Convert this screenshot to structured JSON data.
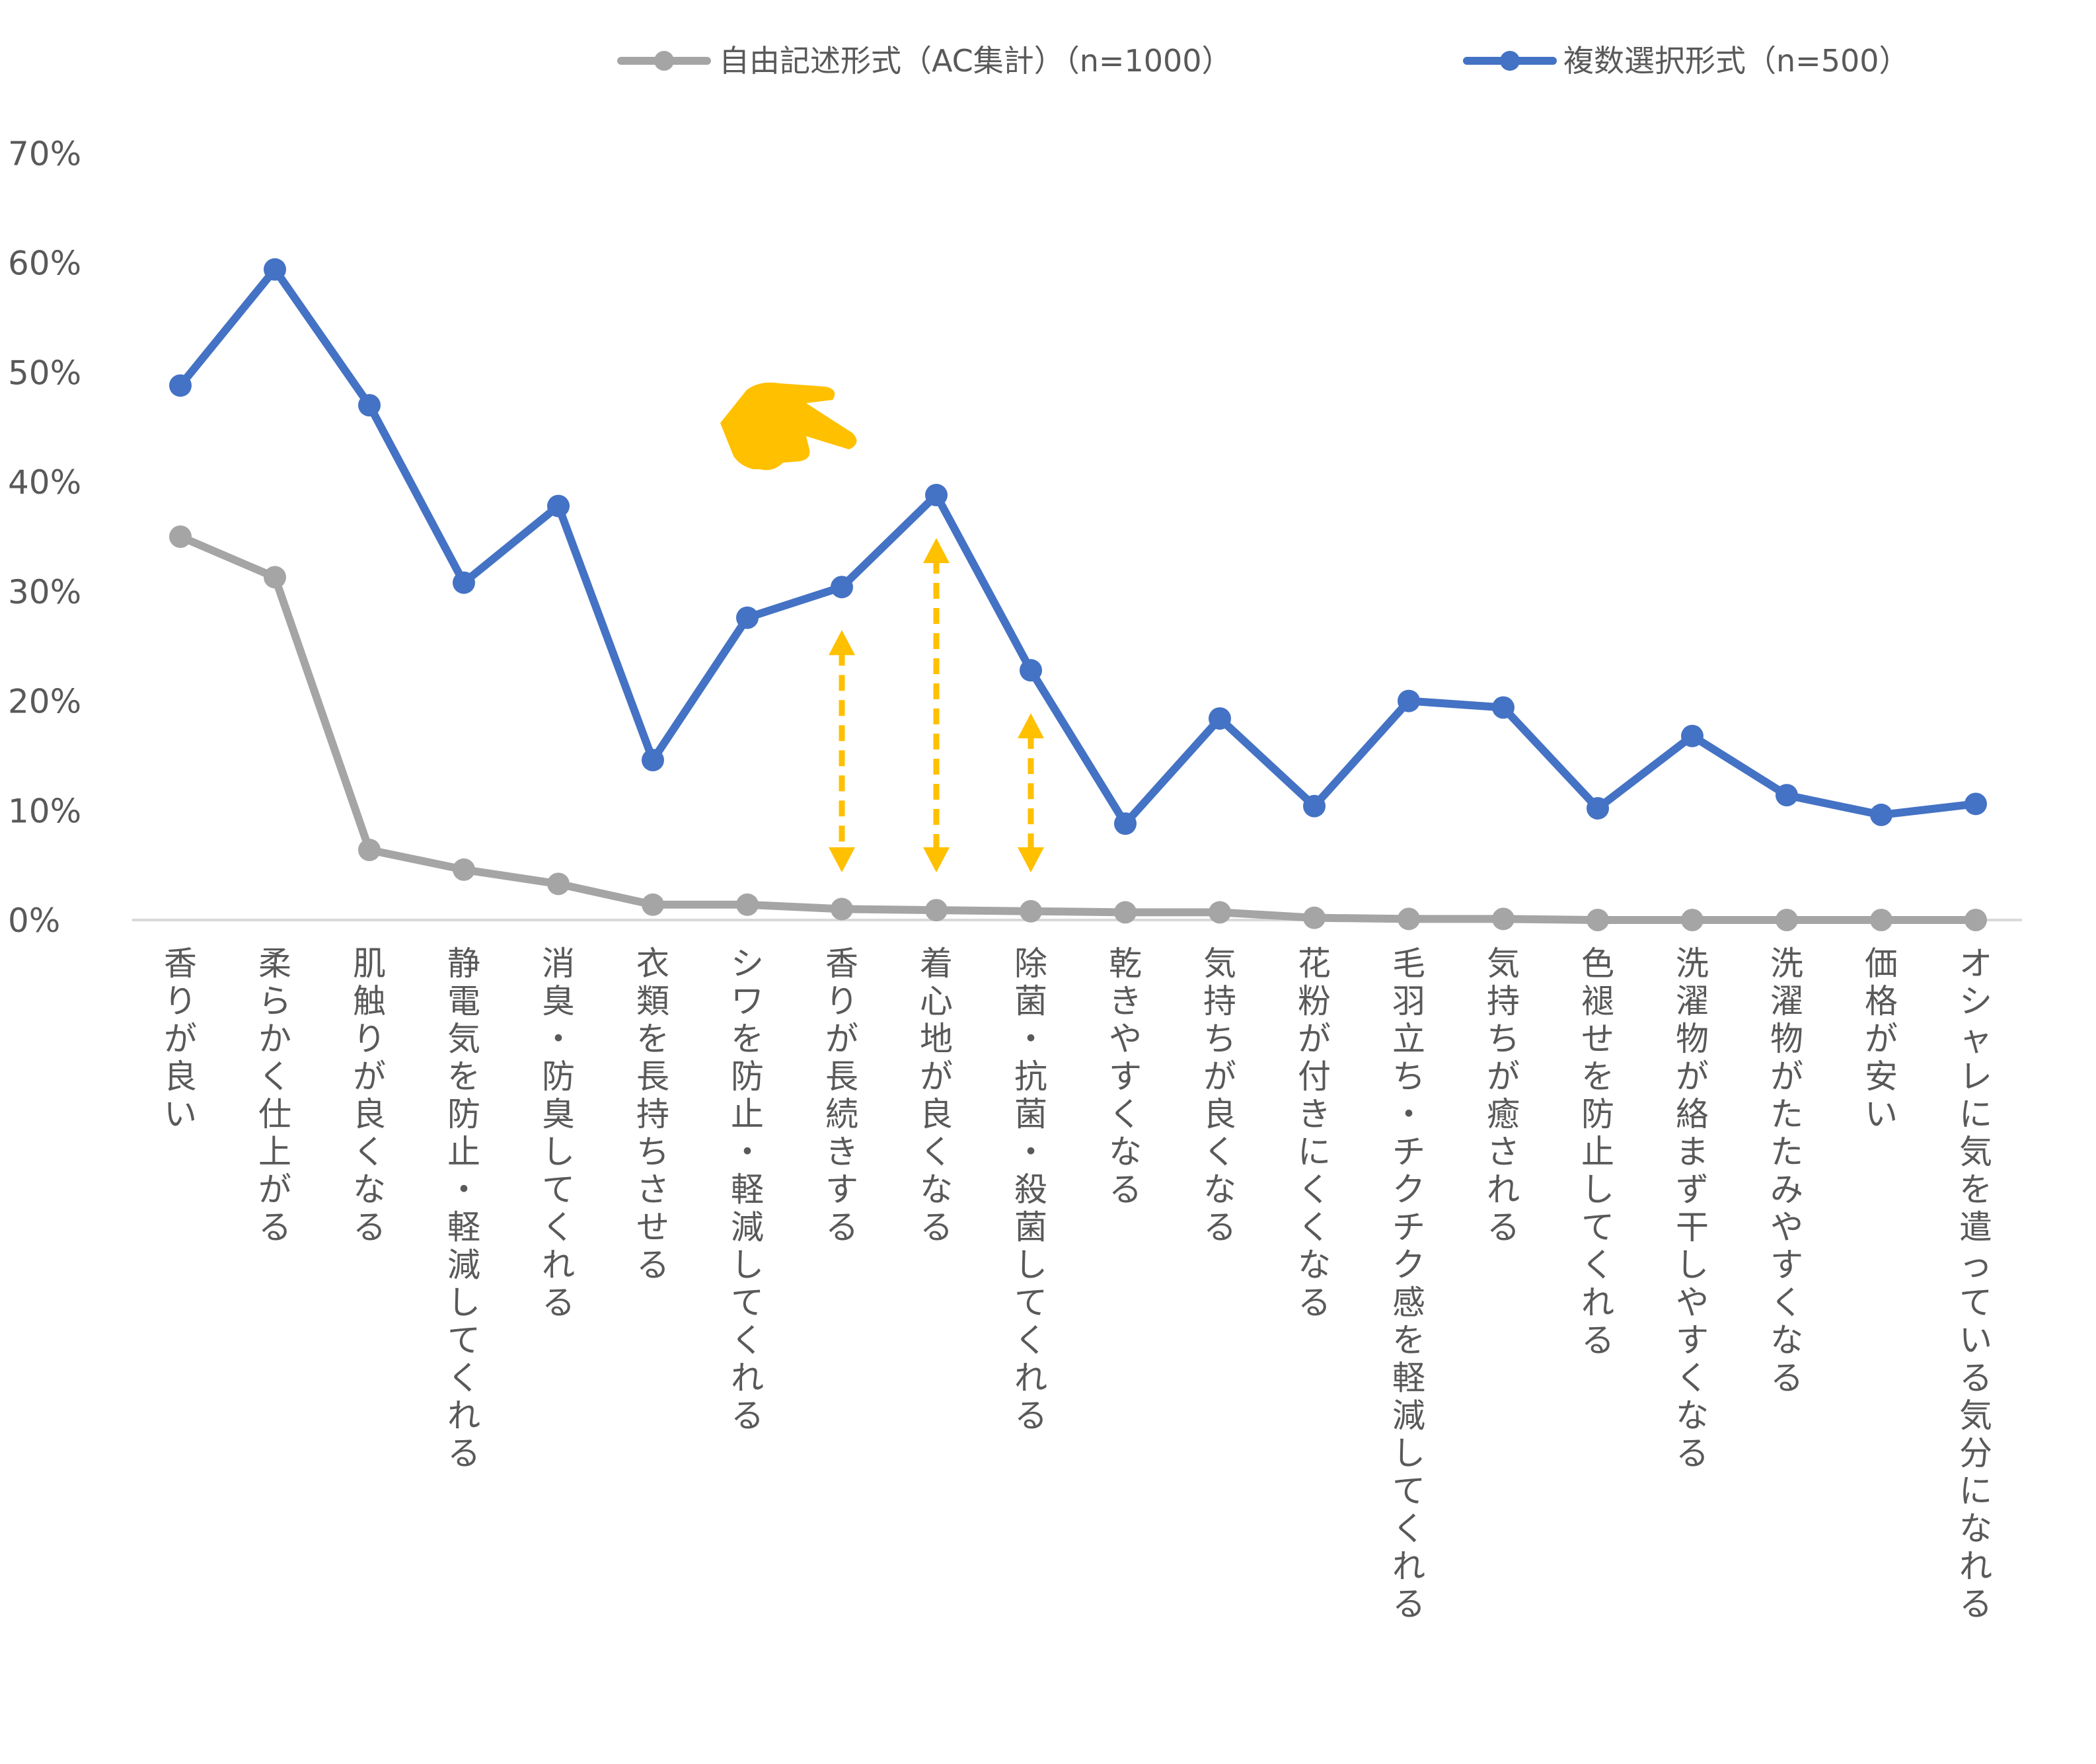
{
  "chart_data": {
    "type": "line",
    "title": "",
    "xlabel": "",
    "ylabel": "",
    "ylim": [
      0,
      70
    ],
    "y_ticks": [
      "0%",
      "10%",
      "20%",
      "30%",
      "40%",
      "50%",
      "60%",
      "70%"
    ],
    "grid": false,
    "legend_position": "top-right",
    "categories": [
      "香りが良い",
      "柔らかく仕上がる",
      "肌触りが良くなる",
      "静電気を防止・軽減してくれる",
      "消臭・防臭してくれる",
      "衣類を長持ちさせる",
      "シワを防止・軽減してくれる",
      "香りが長続きする",
      "着心地が良くなる",
      "除菌・抗菌・殺菌してくれる",
      "乾きやすくなる",
      "気持ちが良くなる",
      "花粉が付きにくくなる",
      "毛羽立ち・チクチク感を軽減してくれる",
      "気持ちが癒される",
      "色褪せを防止してくれる",
      "洗濯物が絡まず干しやすくなる",
      "洗濯物がたたみやすくなる",
      "価格が安い",
      "オシャレに気を遣っている気分になれる"
    ],
    "series": [
      {
        "name": "自由記述形式（AC集計）（n=1000）",
        "color": "#a5a5a5",
        "values": [
          35.0,
          31.3,
          6.4,
          4.6,
          3.3,
          1.4,
          1.4,
          1.0,
          0.9,
          0.8,
          0.7,
          0.7,
          0.2,
          0.1,
          0.1,
          0.0,
          0.0,
          0.0,
          0.0,
          0.0
        ]
      },
      {
        "name": "複数選択形式（n=500）",
        "color": "#4472c4",
        "values": [
          48.8,
          59.4,
          47.0,
          30.8,
          37.8,
          14.6,
          27.6,
          30.4,
          38.8,
          22.8,
          8.8,
          18.4,
          10.4,
          20.0,
          19.4,
          10.2,
          16.8,
          11.4,
          9.6,
          10.6
        ]
      }
    ],
    "annotations": {
      "arrow_color": "#ffc000",
      "pointer_icon": "pointing-hand-icon",
      "double_arrow_categories": [
        7,
        8,
        9
      ]
    }
  }
}
